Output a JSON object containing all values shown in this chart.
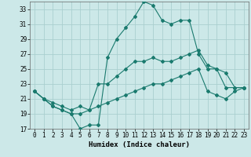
{
  "xlabel": "Humidex (Indice chaleur)",
  "background_color": "#cce8e8",
  "grid_color": "#aacfcf",
  "line_color": "#1a7a6e",
  "xlim": [
    -0.5,
    23.5
  ],
  "ylim": [
    17,
    34
  ],
  "yticks": [
    17,
    19,
    21,
    23,
    25,
    27,
    29,
    31,
    33
  ],
  "xticks": [
    0,
    1,
    2,
    3,
    4,
    5,
    6,
    7,
    8,
    9,
    10,
    11,
    12,
    13,
    14,
    15,
    16,
    17,
    18,
    19,
    20,
    21,
    22,
    23
  ],
  "series1_y": [
    22,
    21,
    20,
    19.5,
    19,
    17,
    17.5,
    17.5,
    26.5,
    29,
    30.5,
    32,
    34,
    33.5,
    31.5,
    31,
    31.5,
    31.5,
    27,
    25,
    25,
    22.5,
    22.5,
    22.5
  ],
  "series2_y": [
    22,
    21,
    20.5,
    20,
    19.5,
    20,
    19.5,
    23,
    23,
    24,
    25,
    26,
    26,
    26.5,
    26,
    26,
    26.5,
    27,
    27.5,
    25.5,
    25,
    24.5,
    22.5,
    22.5
  ],
  "series3_y": [
    22,
    21,
    20,
    19.5,
    19,
    19,
    19.5,
    20,
    20.5,
    21,
    21.5,
    22,
    22.5,
    23,
    23,
    23.5,
    24,
    24.5,
    25,
    22,
    21.5,
    21,
    22,
    22.5
  ],
  "xlabel_fontsize": 6.5,
  "tick_fontsize": 5.5,
  "marker_size": 2,
  "linewidth": 0.8
}
